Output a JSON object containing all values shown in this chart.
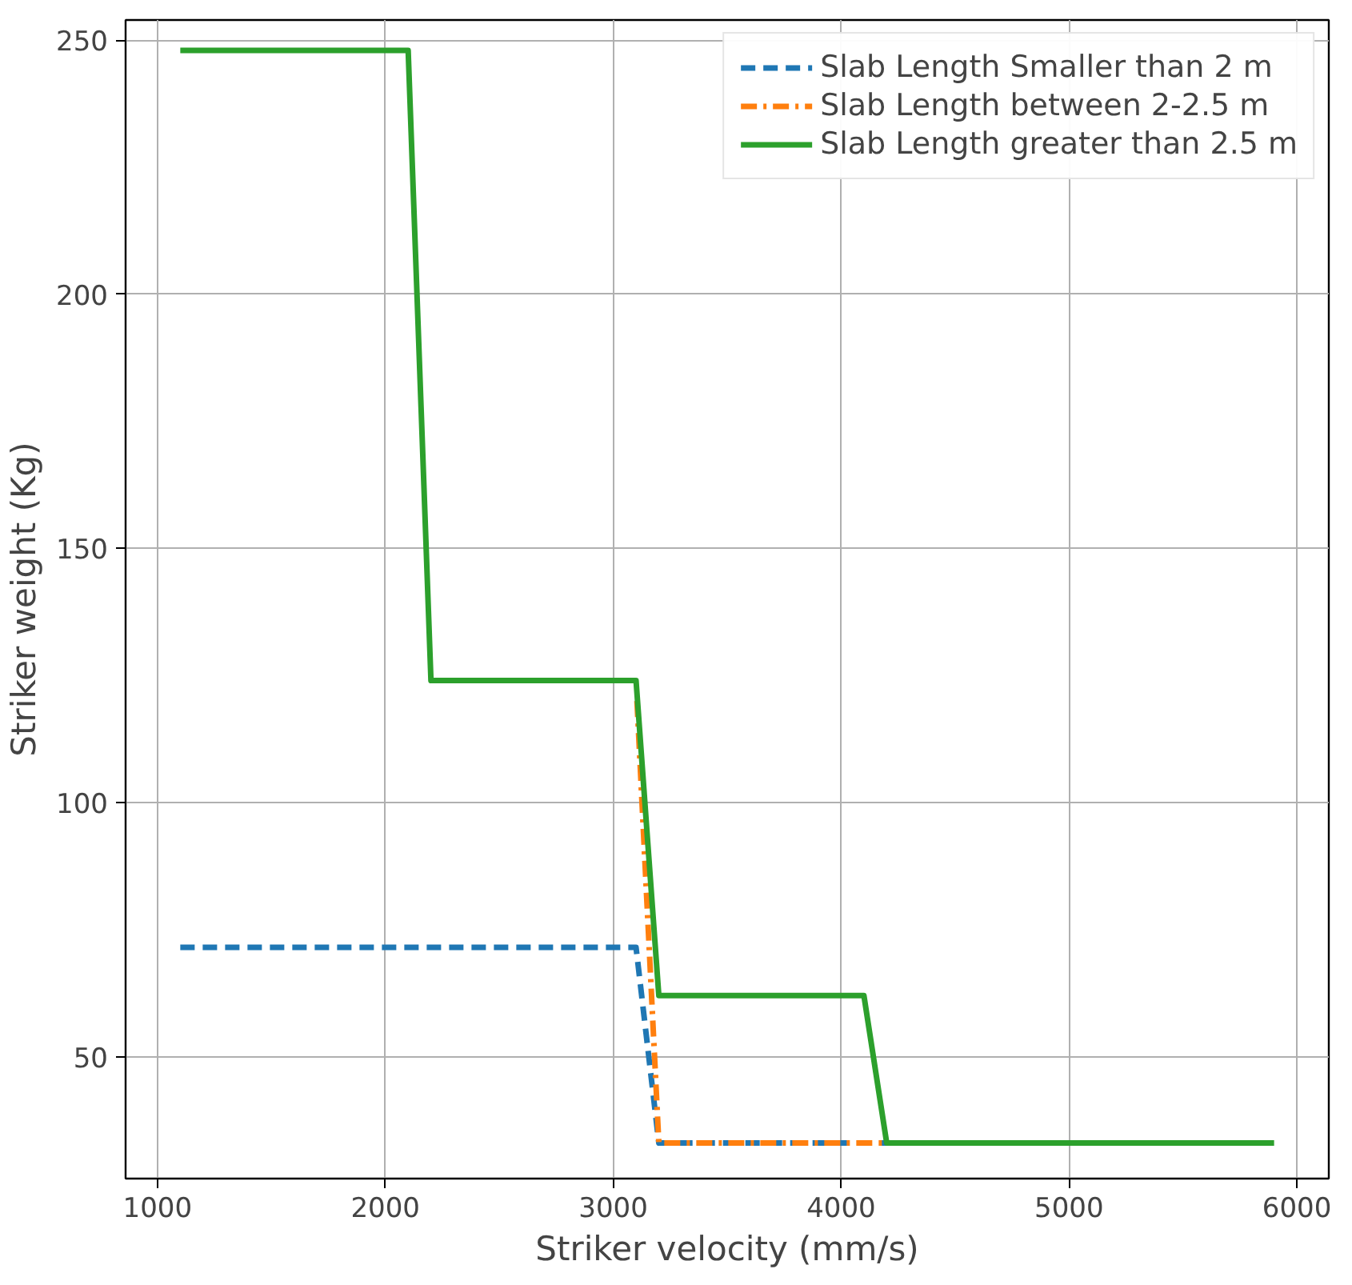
{
  "chart_data": {
    "type": "line",
    "xlabel": "Striker velocity (mm/s)",
    "ylabel": "Striker weight (Kg)",
    "xlim": [
      860,
      6140
    ],
    "ylim": [
      26,
      254
    ],
    "xticks": [
      1000,
      2000,
      3000,
      4000,
      5000,
      6000
    ],
    "yticks": [
      50,
      100,
      150,
      200,
      250
    ],
    "grid": true,
    "legend": "top right",
    "series": [
      {
        "name": "Slab Length Smaller than 2 m",
        "color": "#1f77b4",
        "line_style": "dashed",
        "x": [
          1100,
          3100,
          3200,
          4200
        ],
        "values": [
          71.5,
          71.5,
          33,
          33
        ]
      },
      {
        "name": "Slab Length between 2-2.5 m",
        "color": "#ff7f0e",
        "line_style": "dashdot",
        "x": [
          3104,
          3200,
          4200
        ],
        "values": [
          120,
          33,
          33
        ]
      },
      {
        "name": "Slab Length greater than 2.5 m",
        "color": "#2ca02c",
        "line_style": "solid",
        "x": [
          1100,
          2100,
          2200,
          3100,
          3200,
          4100,
          4200,
          5900
        ],
        "values": [
          248,
          248,
          124,
          124,
          62,
          62,
          33,
          33
        ]
      }
    ]
  }
}
